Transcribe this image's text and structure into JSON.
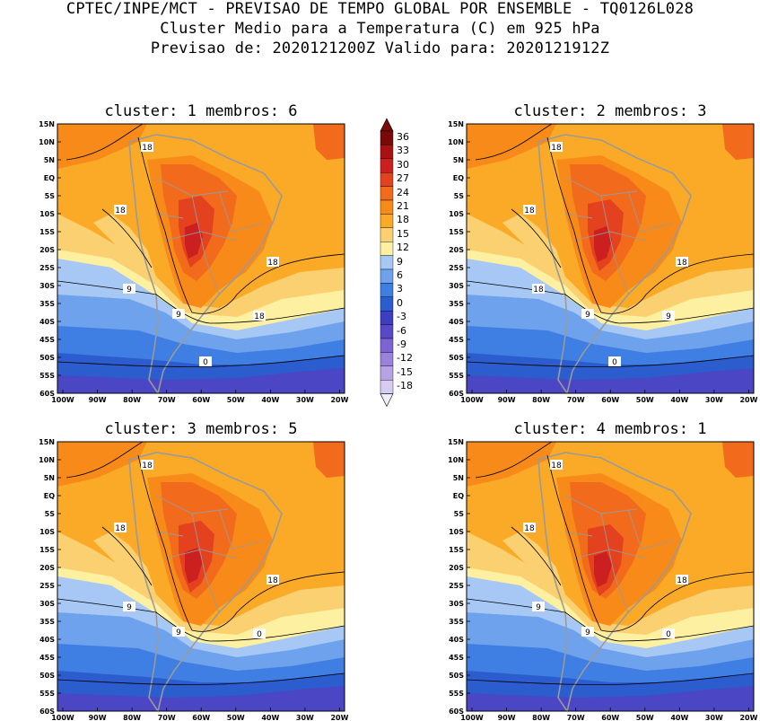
{
  "header": {
    "line1": "CPTEC/INPE/MCT - PREVISAO DE TEMPO GLOBAL POR ENSEMBLE - TQ0126L028",
    "line2": "Cluster Medio para a Temperatura (C) em 925 hPa",
    "line3": "Previsao de: 2020121200Z   Valido para: 2020121912Z"
  },
  "axes": {
    "lat_labels": [
      "15N",
      "10N",
      "5N",
      "EQ",
      "5S",
      "10S",
      "15S",
      "20S",
      "25S",
      "30S",
      "35S",
      "40S",
      "45S",
      "50S",
      "55S",
      "60S"
    ],
    "lon_labels": [
      "100W",
      "90W",
      "80W",
      "70W",
      "60W",
      "50W",
      "40W",
      "30W",
      "20W"
    ]
  },
  "colorbar": {
    "labels": [
      "36",
      "33",
      "30",
      "27",
      "24",
      "21",
      "18",
      "15",
      "12",
      "9",
      "6",
      "3",
      "0",
      "-3",
      "-6",
      "-9",
      "-12",
      "-15",
      "-18"
    ],
    "colors": [
      "#7a0a0a",
      "#a91212",
      "#cc2020",
      "#e4421e",
      "#f26a1c",
      "#f88a1a",
      "#fbaa28",
      "#fbd070",
      "#fdf0a0",
      "#a7c8f4",
      "#6fa2ec",
      "#3f7ee2",
      "#2c5dce",
      "#3e3ec2",
      "#5a48c8",
      "#7c64d4",
      "#9a82dc",
      "#b8a2e6",
      "#d8ccf2"
    ],
    "levels": [
      36,
      33,
      30,
      27,
      24,
      21,
      18,
      15,
      12,
      9,
      6,
      3,
      0,
      -3,
      -6,
      -9,
      -12,
      -15,
      -18
    ]
  },
  "panels": [
    {
      "title": "cluster: 1   membros: 6",
      "contour_labels": [
        "18",
        "18",
        "18",
        "9",
        "9",
        "18",
        "0"
      ]
    },
    {
      "title": "cluster: 2   membros: 3",
      "contour_labels": [
        "18",
        "18",
        "18",
        "18",
        "9",
        "9",
        "0"
      ]
    },
    {
      "title": "cluster: 3   membros: 5",
      "contour_labels": [
        "18",
        "18",
        "18",
        "9",
        "9",
        "0"
      ]
    },
    {
      "title": "cluster: 4   membros: 1",
      "contour_labels": [
        "18",
        "18",
        "18",
        "9",
        "9",
        "0"
      ]
    }
  ]
}
